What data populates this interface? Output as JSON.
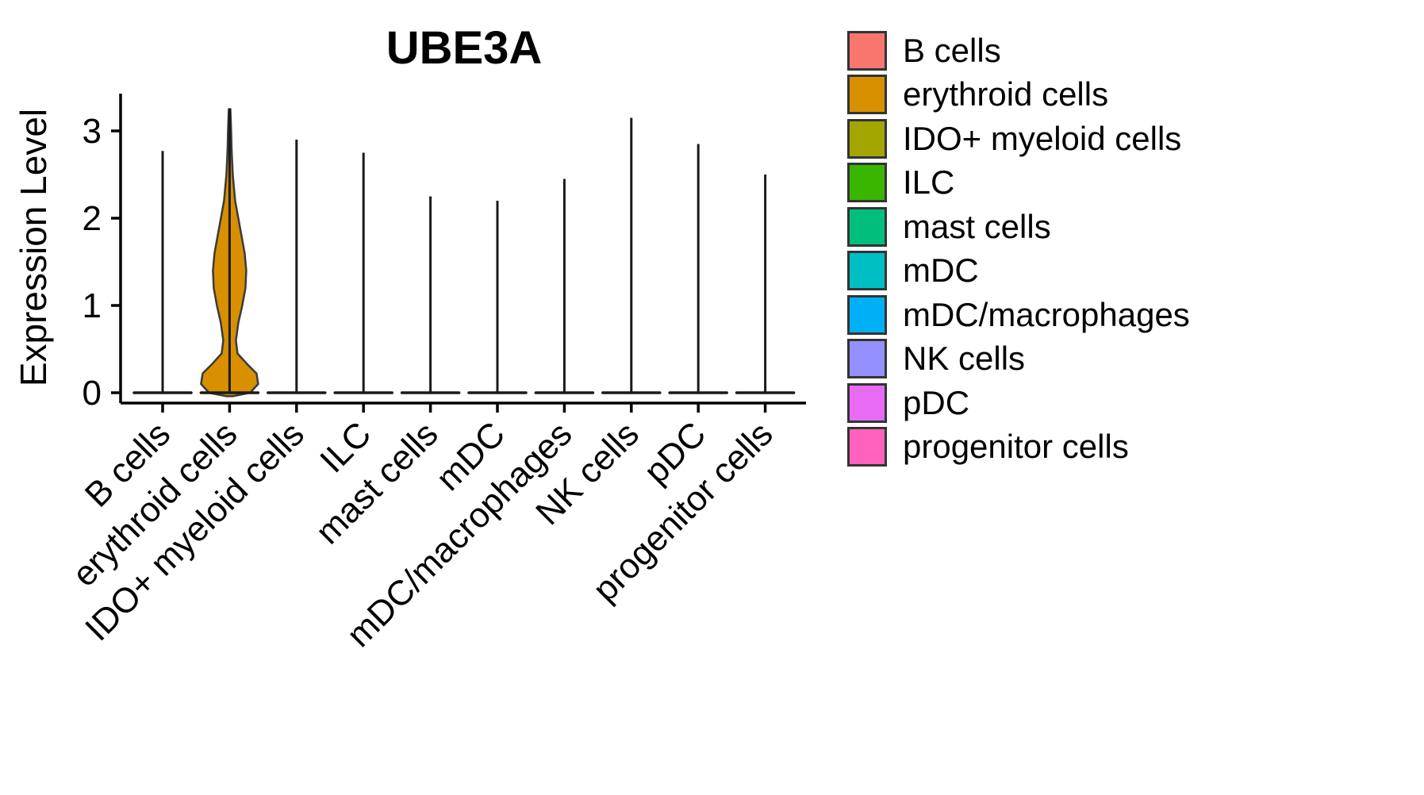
{
  "chart_data": {
    "type": "violin",
    "title": "UBE3A",
    "ylabel": "Expression Level",
    "xlabel": "",
    "ylim": [
      -0.1,
      3.45
    ],
    "yticks": [
      0,
      1,
      2,
      3
    ],
    "ytick_labels": [
      "0",
      "1",
      "2",
      "3"
    ],
    "grid": "off",
    "categories": [
      "B cells",
      "erythroid cells",
      "IDO+ myeloid cells",
      "ILC",
      "mast cells",
      "mDC",
      "mDC/macrophages",
      "NK cells",
      "pDC",
      "progenitor cells"
    ],
    "colors": [
      "#F8766D",
      "#D89000",
      "#A3A500",
      "#39B600",
      "#00BF7D",
      "#00BFC4",
      "#00B0F6",
      "#9590FF",
      "#E76BF3",
      "#FF62BC"
    ],
    "max_expression": [
      2.77,
      3.25,
      2.9,
      2.75,
      2.25,
      2.2,
      2.45,
      3.15,
      2.85,
      2.5
    ],
    "note": "All distributions are concentrated at 0 (thin spikes); only erythroid cells shows a visible filled violin",
    "erythroid_violin_profile": [
      [
        -0.04,
        4
      ],
      [
        0.0,
        26
      ],
      [
        0.1,
        36
      ],
      [
        0.22,
        34
      ],
      [
        0.33,
        22
      ],
      [
        0.45,
        10
      ],
      [
        0.6,
        8
      ],
      [
        0.8,
        11
      ],
      [
        1.0,
        16
      ],
      [
        1.2,
        20
      ],
      [
        1.4,
        21
      ],
      [
        1.6,
        19
      ],
      [
        1.8,
        15
      ],
      [
        2.0,
        11
      ],
      [
        2.2,
        7
      ],
      [
        2.5,
        4
      ],
      [
        2.8,
        2.5
      ],
      [
        3.0,
        2
      ],
      [
        3.25,
        1
      ]
    ],
    "legend": {
      "position": "right",
      "entries": [
        {
          "label": "B cells",
          "color": "#F8766D"
        },
        {
          "label": "erythroid cells",
          "color": "#D89000"
        },
        {
          "label": "IDO+ myeloid cells",
          "color": "#A3A500"
        },
        {
          "label": "ILC",
          "color": "#39B600"
        },
        {
          "label": "mast cells",
          "color": "#00BF7D"
        },
        {
          "label": "mDC",
          "color": "#00BFC4"
        },
        {
          "label": "mDC/macrophages",
          "color": "#00B0F6"
        },
        {
          "label": "NK cells",
          "color": "#9590FF"
        },
        {
          "label": "pDC",
          "color": "#E76BF3"
        },
        {
          "label": "progenitor cells",
          "color": "#FF62BC"
        }
      ]
    }
  }
}
